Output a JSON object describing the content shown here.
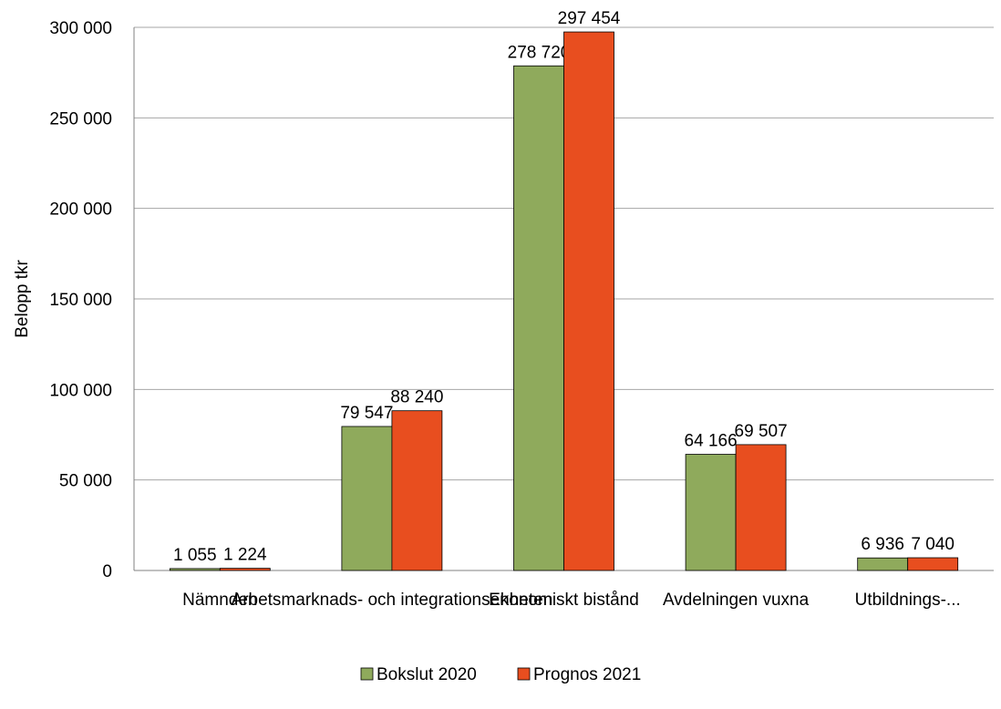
{
  "chart_data": {
    "type": "bar",
    "title": "",
    "xlabel": "",
    "ylabel": "Belopp tkr",
    "categories": [
      "Nämnden",
      "Arbetsmarknads- och integrationsenheten",
      "Ekonomiskt bistånd",
      "Avdelningen vuxna",
      "Utbildnings-..."
    ],
    "series": [
      {
        "name": "Bokslut 2020",
        "color": "#8faa5c",
        "values": [
          1055,
          79547,
          278720,
          64166,
          6936
        ],
        "labels": [
          "1 055",
          "79 547",
          "278 720",
          "64 166",
          "6 936"
        ]
      },
      {
        "name": "Prognos 2021",
        "color": "#e84e1f",
        "values": [
          1224,
          88240,
          297454,
          69507,
          7040
        ],
        "labels": [
          "1 224",
          "88 240",
          "297 454",
          "69 507",
          "7 040"
        ]
      }
    ],
    "ylim": [
      0,
      300000
    ],
    "yticks": [
      0,
      50000,
      100000,
      150000,
      200000,
      250000,
      300000
    ],
    "ytick_labels": [
      "0",
      "50 000",
      "100 000",
      "150 000",
      "200 000",
      "250 000",
      "300 000"
    ],
    "grid": true,
    "legend_position": "bottom"
  }
}
